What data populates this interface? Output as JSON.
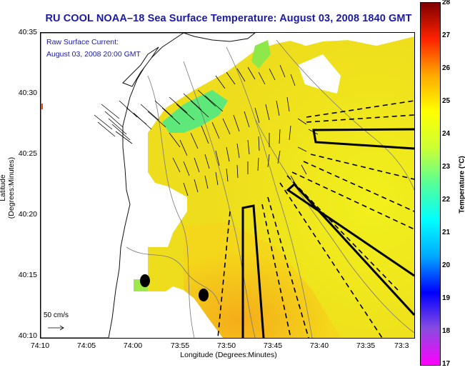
{
  "title": "RU COOL  NOAA–18  Sea Surface Temperature:  August 03, 2008 1840 GMT",
  "legend": {
    "line1": "Raw Surface Current:",
    "line2": "August 03, 2008 20:00 GMT",
    "scale": "50 cm/s"
  },
  "axes": {
    "xlabel": "Longitude (Degrees:Minutes)",
    "ylabel": "Latitude (Degrees:Minutes)",
    "xticks": [
      "74:10",
      "74:05",
      "74:00",
      "73:55",
      "73:50",
      "73:45",
      "73:40",
      "73:35",
      "73:3"
    ],
    "yticks": [
      "40:35",
      "40:30",
      "40:25",
      "40:20",
      "40:15",
      "40:10"
    ]
  },
  "colorbar": {
    "label": "Temperature (°C)",
    "ticks": [
      "28",
      "27",
      "26",
      "25",
      "24",
      "23",
      "22",
      "21",
      "20",
      "19",
      "18",
      "17"
    ],
    "range": [
      17,
      28
    ]
  },
  "colors": {
    "title": "#1a1aa6",
    "warm_sst": "#f4d61a",
    "cool_sst": "#63e86a"
  }
}
